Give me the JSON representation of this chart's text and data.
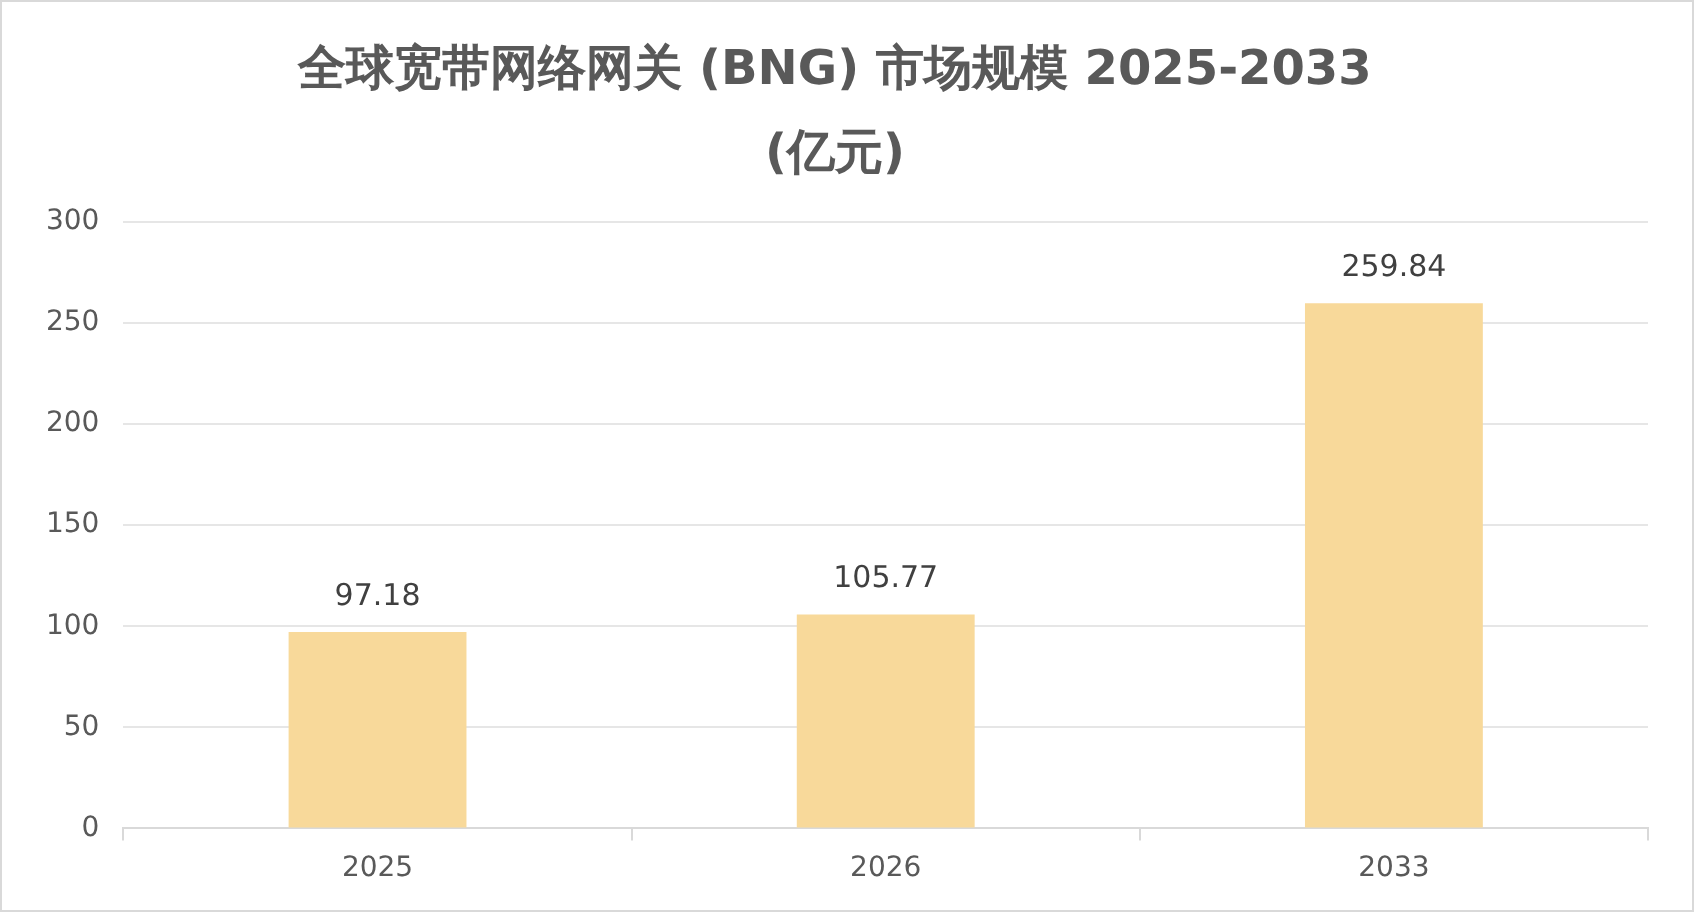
{
  "chart_data": {
    "type": "bar",
    "title": "全球宽带网络网关 (BNG) 市场规模 2025-2033\n(亿元)",
    "categories": [
      "2025",
      "2026",
      "2033"
    ],
    "values": [
      97.18,
      105.77,
      259.84
    ],
    "color": "#f8d99a",
    "ylim": [
      0,
      300
    ],
    "yticks": [
      0,
      50,
      100,
      150,
      200,
      250,
      300
    ],
    "grid": "y",
    "data_labels": true
  }
}
